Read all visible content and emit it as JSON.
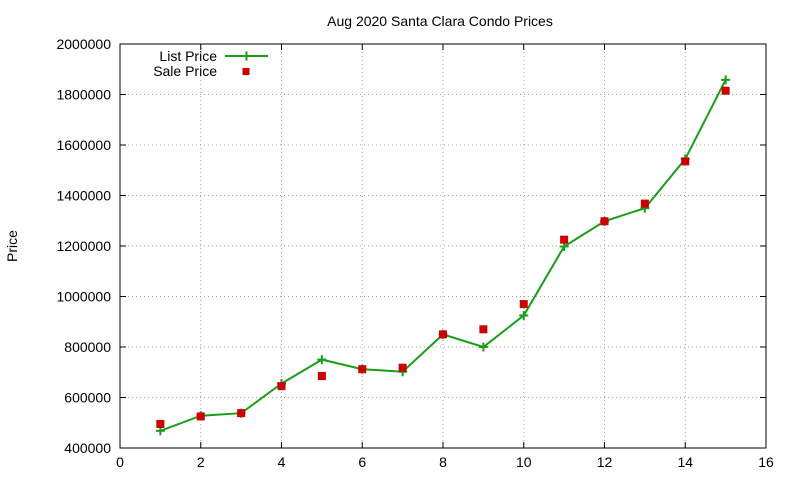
{
  "chart_data": {
    "type": "line",
    "title": "Aug 2020 Santa Clara Condo Prices",
    "xlabel": "",
    "ylabel": "Price",
    "xlim": [
      0,
      16
    ],
    "ylim": [
      400000,
      2000000
    ],
    "xticks": [
      0,
      2,
      4,
      6,
      8,
      10,
      12,
      14,
      16
    ],
    "yticks": [
      400000,
      600000,
      800000,
      1000000,
      1200000,
      1400000,
      1600000,
      1800000,
      2000000
    ],
    "grid": true,
    "legend_position": "top-left",
    "series": [
      {
        "name": "List Price",
        "style": "line-with-plus-markers",
        "color": "#1a9e1a",
        "x": [
          1,
          2,
          3,
          4,
          5,
          6,
          7,
          8,
          9,
          10,
          11,
          12,
          13,
          14,
          15
        ],
        "values": [
          468000,
          528000,
          538000,
          655000,
          750000,
          712000,
          702000,
          850000,
          800000,
          925000,
          1198000,
          1298000,
          1350000,
          1545000,
          1858000
        ]
      },
      {
        "name": "Sale Price",
        "style": "square-markers",
        "color": "#cc0000",
        "x": [
          1,
          2,
          3,
          4,
          5,
          6,
          7,
          8,
          9,
          10,
          11,
          12,
          13,
          14,
          15
        ],
        "values": [
          495000,
          525000,
          538000,
          645000,
          685000,
          712000,
          718000,
          850000,
          870000,
          970000,
          1225000,
          1298000,
          1368000,
          1535000,
          1815000
        ]
      }
    ]
  }
}
